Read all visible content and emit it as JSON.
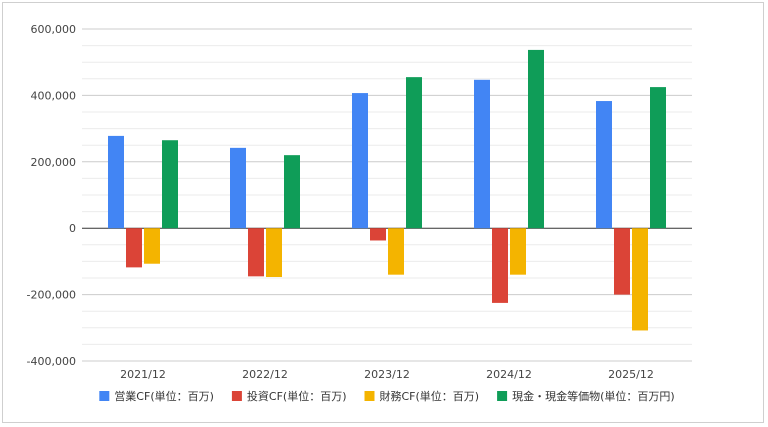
{
  "chart_data": {
    "type": "bar",
    "title": "",
    "xlabel": "",
    "ylabel": "",
    "categories": [
      "2021/12",
      "2022/12",
      "2023/12",
      "2024/12",
      "2025/12"
    ],
    "ylim": [
      -400000,
      600000
    ],
    "yticks": [
      600000,
      400000,
      200000,
      0,
      -200000,
      -400000
    ],
    "ytick_labels": [
      "600,000",
      "400,000",
      "200,000",
      "0",
      "-200,000",
      "-400,000"
    ],
    "grid": true,
    "legend_position": "bottom",
    "series": [
      {
        "name": "営業CF(単位：百万)",
        "color": "#4285f4",
        "values": [
          278000,
          242000,
          407000,
          447000,
          383000
        ]
      },
      {
        "name": "投資CF(単位：百万)",
        "color": "#db4437",
        "values": [
          -118000,
          -145000,
          -37000,
          -225000,
          -200000
        ]
      },
      {
        "name": "財務CF(単位：百万)",
        "color": "#f4b400",
        "values": [
          -107000,
          -147000,
          -140000,
          -140000,
          -308000
        ]
      },
      {
        "name": "現金・現金等価物(単位：百万円)",
        "color": "#0f9d58",
        "values": [
          265000,
          220000,
          455000,
          537000,
          425000
        ]
      }
    ]
  }
}
